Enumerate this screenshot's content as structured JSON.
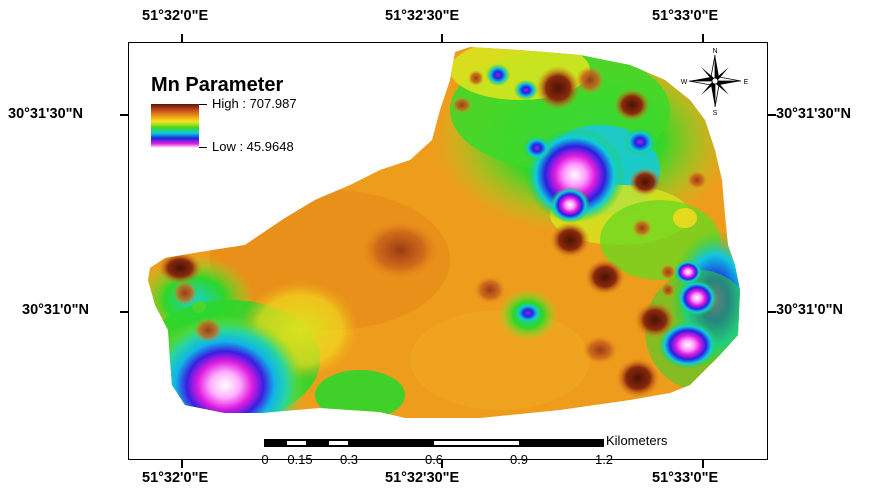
{
  "legend": {
    "title": "Mn Parameter",
    "high_label": "High : 707.987",
    "low_label": "Low : 45.9648",
    "ramp_colors": [
      "#5a1605",
      "#b8431e",
      "#f09a1a",
      "#f3e51e",
      "#41d81e",
      "#0ecde0",
      "#1a28e0",
      "#e01ce0",
      "#ffffff"
    ]
  },
  "coords": {
    "top": [
      "51°32'0\"E",
      "51°32'30\"E",
      "51°33'0\"E"
    ],
    "bottom": [
      "51°32'0\"E",
      "51°32'30\"E",
      "51°33'0\"E"
    ],
    "left": [
      "30°31'30\"N",
      "30°31'0\"N"
    ],
    "right": [
      "30°31'30\"N",
      "30°31'0\"N"
    ]
  },
  "compass": {
    "n": "N",
    "s": "S",
    "e": "E",
    "w": "W",
    "icon": "compass-rose-icon"
  },
  "scale_bar": {
    "unit": "Kilometers",
    "ticks": [
      "0",
      "0.15",
      "0.3",
      "0.6",
      "0.9",
      "1.2"
    ]
  }
}
